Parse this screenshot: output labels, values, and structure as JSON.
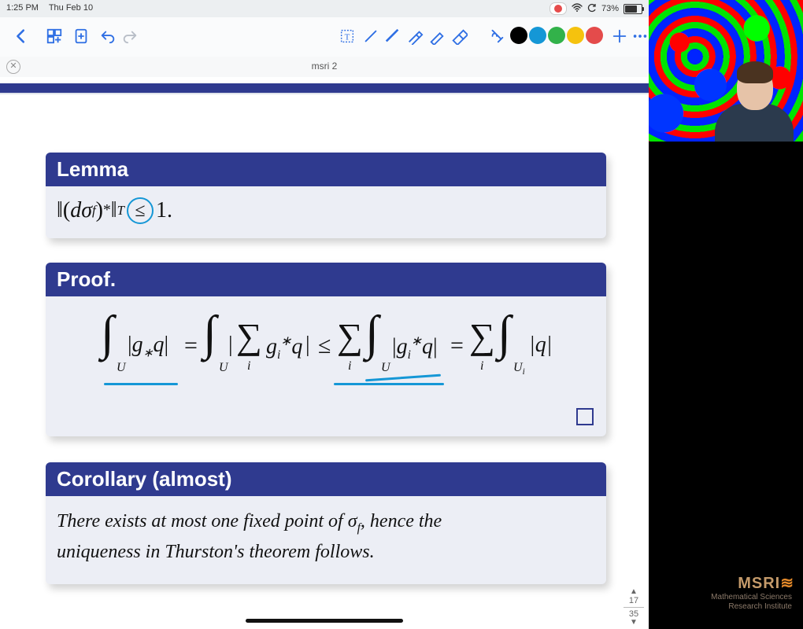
{
  "status_bar": {
    "time": "1:25 PM",
    "date": "Thu Feb 10",
    "battery_pct": "73%",
    "battery_fill_pct": 73
  },
  "toolbar": {
    "colors": {
      "back": "#2f6fe4",
      "dim": "#b8bec7",
      "swatches": [
        "#000000",
        "#1597d6",
        "#32b24a",
        "#f5c20e",
        "#e44b4b"
      ]
    }
  },
  "doc": {
    "title": "msri 2"
  },
  "page_nav": {
    "current": "17",
    "total": "35"
  },
  "lemma": {
    "title": "Lemma",
    "formula": {
      "open_norm": "‖(",
      "d": "d",
      "sigma": "σ",
      "f_sub": "f",
      "close": ")",
      "star": "*",
      "close_norm": "‖",
      "T_sub": "T",
      "le": "≤",
      "rhs": "1."
    },
    "annotation_color": "#1597d6"
  },
  "proof": {
    "title": "Proof.",
    "formula": {
      "int": "∫",
      "sum": "∑",
      "U": "U",
      "Ui": "U",
      "Ui_i": "i",
      "i": "i",
      "g_star_q": "|g*q|",
      "g_push_q": "g",
      "eq": "=",
      "le": "≤",
      "abs_open": "|",
      "abs_close": "|",
      "gi_star_q": "g",
      "q": "|q|"
    },
    "annotation_color": "#1597d6"
  },
  "corollary": {
    "title": "Corollary (almost)",
    "line1_a": "There exists at most one fixed point of ",
    "sigma": "σ",
    "f_sub": "f",
    "line1_b": ", hence the",
    "line2": "uniqueness in Thurston's theorem follows."
  },
  "right_panel": {
    "logo": {
      "brand": "MSRI",
      "line1": "Mathematical Sciences",
      "line2": "Research Institute"
    }
  },
  "style": {
    "box_header_bg": "#2f3a8f",
    "box_body_bg": "#eceef5"
  }
}
